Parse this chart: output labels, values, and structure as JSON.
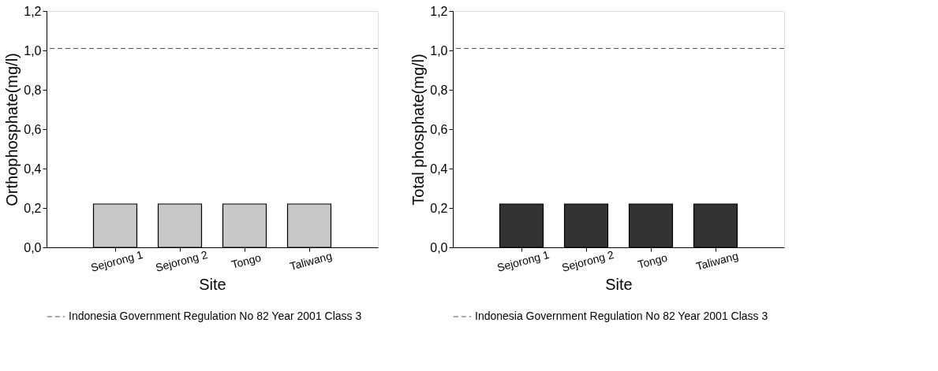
{
  "chart_data": [
    {
      "type": "bar",
      "xlabel": "Site",
      "ylabel": "Orthophosphate(mg/l)",
      "categories": [
        "Sejorong 1",
        "Sejorong 2",
        "Tongo",
        "Taliwang"
      ],
      "values": [
        0.22,
        0.22,
        0.22,
        0.22
      ],
      "color": "#c8c8c8",
      "ylim": [
        0,
        1.2
      ],
      "yticks": [
        {
          "value": 0,
          "label": "0,0"
        },
        {
          "value": 0.2,
          "label": "0,2"
        },
        {
          "value": 0.4,
          "label": "0,4"
        },
        {
          "value": 0.6,
          "label": "0,6"
        },
        {
          "value": 0.8,
          "label": "0,8"
        },
        {
          "value": 1.0,
          "label": "1,0"
        },
        {
          "value": 1.2,
          "label": "1,2"
        }
      ],
      "ref_lines": [
        {
          "axis": "y",
          "value": 1.01,
          "label": "Indonesia Government Regulation No 82 Year 2001 Class 3",
          "color": "#555555",
          "line_style": "dashed"
        }
      ],
      "grid": false,
      "legend": "bottom"
    },
    {
      "type": "bar",
      "xlabel": "Site",
      "ylabel": "Total phosphate(mg/l)",
      "categories": [
        "Sejorong 1",
        "Sejorong 2",
        "Tongo",
        "Taliwang"
      ],
      "values": [
        0.22,
        0.22,
        0.22,
        0.22
      ],
      "color": "#333333",
      "ylim": [
        0,
        1.2
      ],
      "yticks": [
        {
          "value": 0,
          "label": "0,0"
        },
        {
          "value": 0.2,
          "label": "0,2"
        },
        {
          "value": 0.4,
          "label": "0,4"
        },
        {
          "value": 0.6,
          "label": "0,6"
        },
        {
          "value": 0.8,
          "label": "0,8"
        },
        {
          "value": 1.0,
          "label": "1,0"
        },
        {
          "value": 1.2,
          "label": "1,2"
        }
      ],
      "ref_lines": [
        {
          "axis": "y",
          "value": 1.01,
          "label": "Indonesia Government Regulation No 82 Year 2001 Class 3",
          "color": "#555555",
          "line_style": "dashed"
        }
      ],
      "grid": false,
      "legend": "bottom"
    }
  ]
}
